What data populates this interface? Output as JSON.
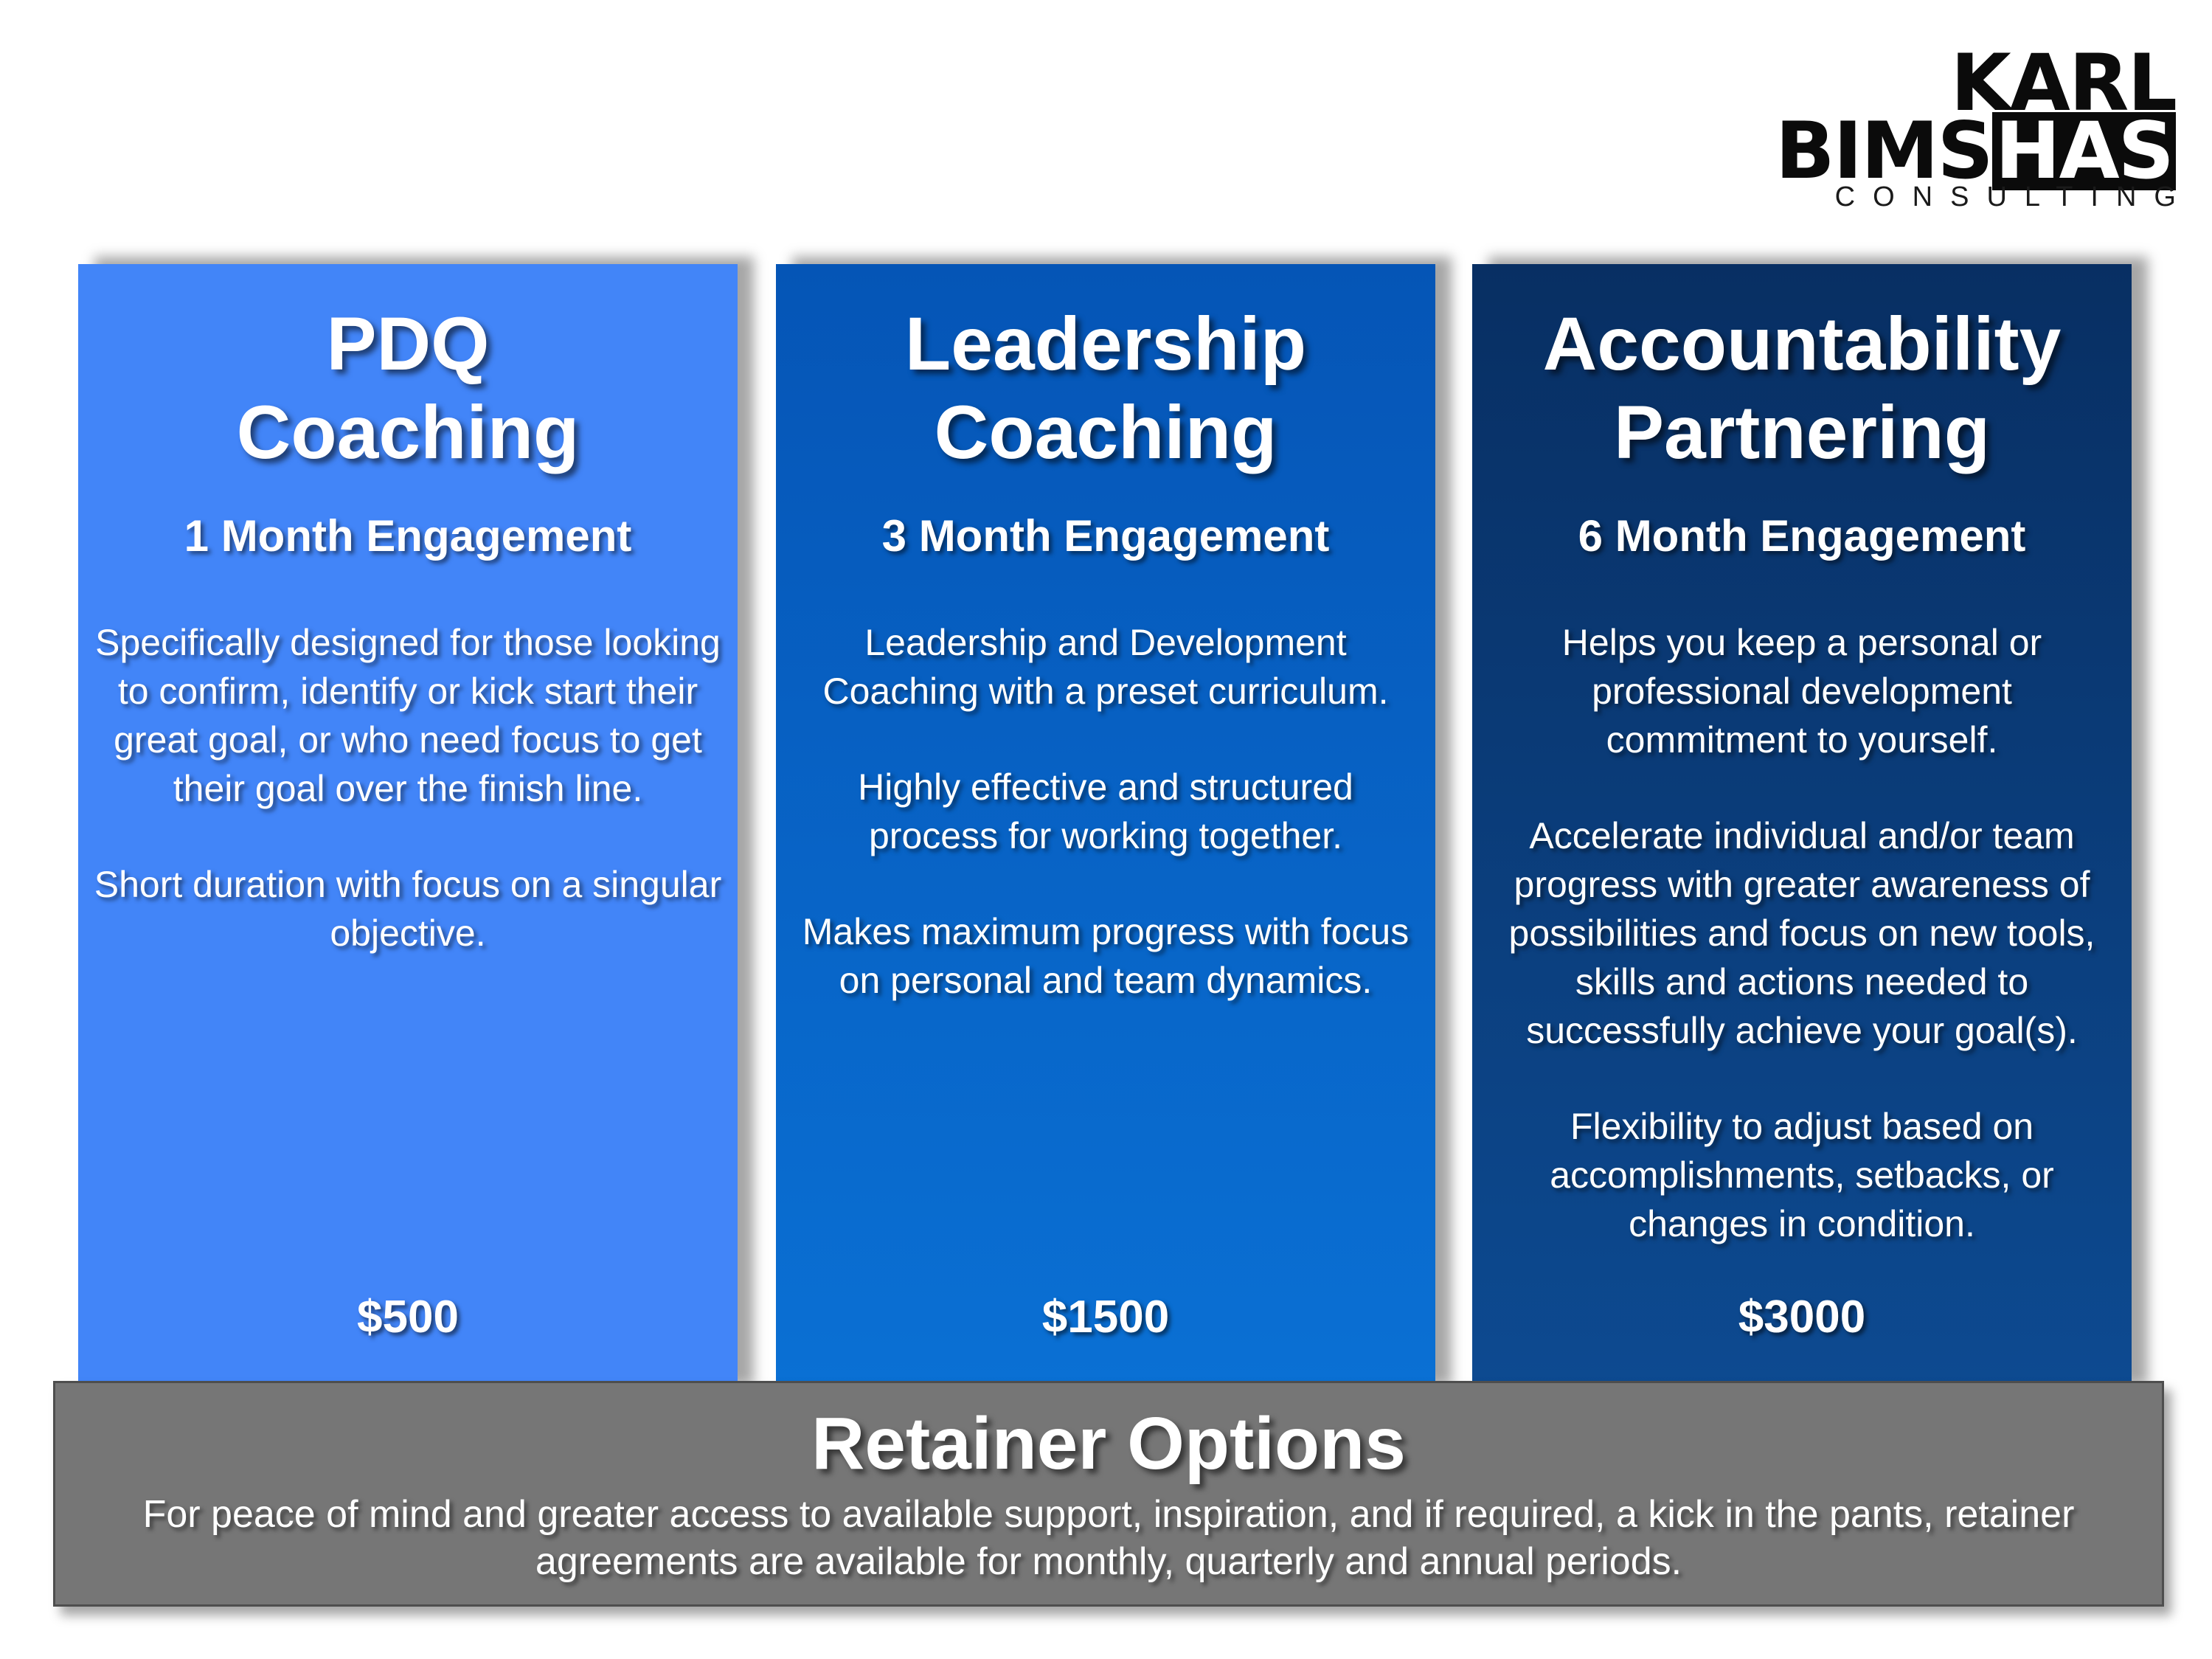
{
  "logo": {
    "line1": "KARL",
    "line2_pre": "BIMS",
    "line2_block": "HAS",
    "line3": "CONSULTING"
  },
  "panels": [
    {
      "title_line1": "PDQ",
      "title_line2": "Coaching",
      "engagement": "1 Month Engagement",
      "paragraphs": [
        "Specifically designed for those looking to confirm, identify or kick start their great goal, or who need focus to get their goal over the finish line.",
        "Short duration with focus on a singular objective."
      ],
      "price": "$500",
      "color": "#4285f8"
    },
    {
      "title_line1": "Leadership",
      "title_line2": "Coaching",
      "engagement": "3 Month Engagement",
      "paragraphs": [
        "Leadership and Development Coaching with a preset curriculum.",
        "Highly effective and structured process for working together.",
        "Makes maximum progress with focus on personal and team dynamics."
      ],
      "price": "$1500",
      "color": "#0a65c8"
    },
    {
      "title_line1": "Accountability",
      "title_line2": "Partnering",
      "engagement": "6 Month Engagement",
      "paragraphs": [
        "Helps you keep a personal or professional development commitment to yourself.",
        "Accelerate individual and/or team progress with greater awareness of possibilities and focus on new tools, skills and actions needed to successfully achieve your goal(s).",
        "Flexibility to adjust based on accomplishments, setbacks, or changes in condition."
      ],
      "price": "$3000",
      "color": "#0b3d7a"
    }
  ],
  "retainer": {
    "title": "Retainer Options",
    "body": "For peace of mind and greater access to available support, inspiration, and if required, a kick in the pants, retainer agreements are available for monthly, quarterly and annual periods."
  }
}
